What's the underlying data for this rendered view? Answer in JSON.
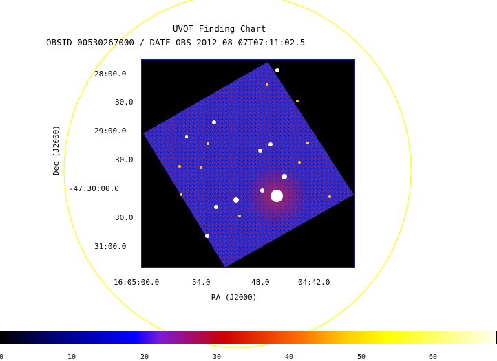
{
  "title": "UVOT Finding Chart",
  "subtitle": "OBSID 00530267000 / DATE-OBS 2012-08-07T07:11:02.5",
  "y_axis": {
    "label": "Dec (J2000)",
    "ticks": [
      "28:00.0",
      "30.0",
      "29:00.0",
      "30.0",
      "-47:30:00.0",
      "30.0",
      "31:00.0"
    ]
  },
  "x_axis": {
    "label": "RA (J2000)",
    "ticks": [
      "16:05:00.0",
      "54.0",
      "48.0",
      "04:42.0"
    ]
  },
  "colorbar": {
    "ticks": [
      "0",
      "10",
      "20",
      "30",
      "40",
      "50",
      "60"
    ]
  },
  "colors": {
    "circle": "#ffff00",
    "frame": "#1a1aa0",
    "field": "#2a2ac8",
    "background": "#000000"
  }
}
